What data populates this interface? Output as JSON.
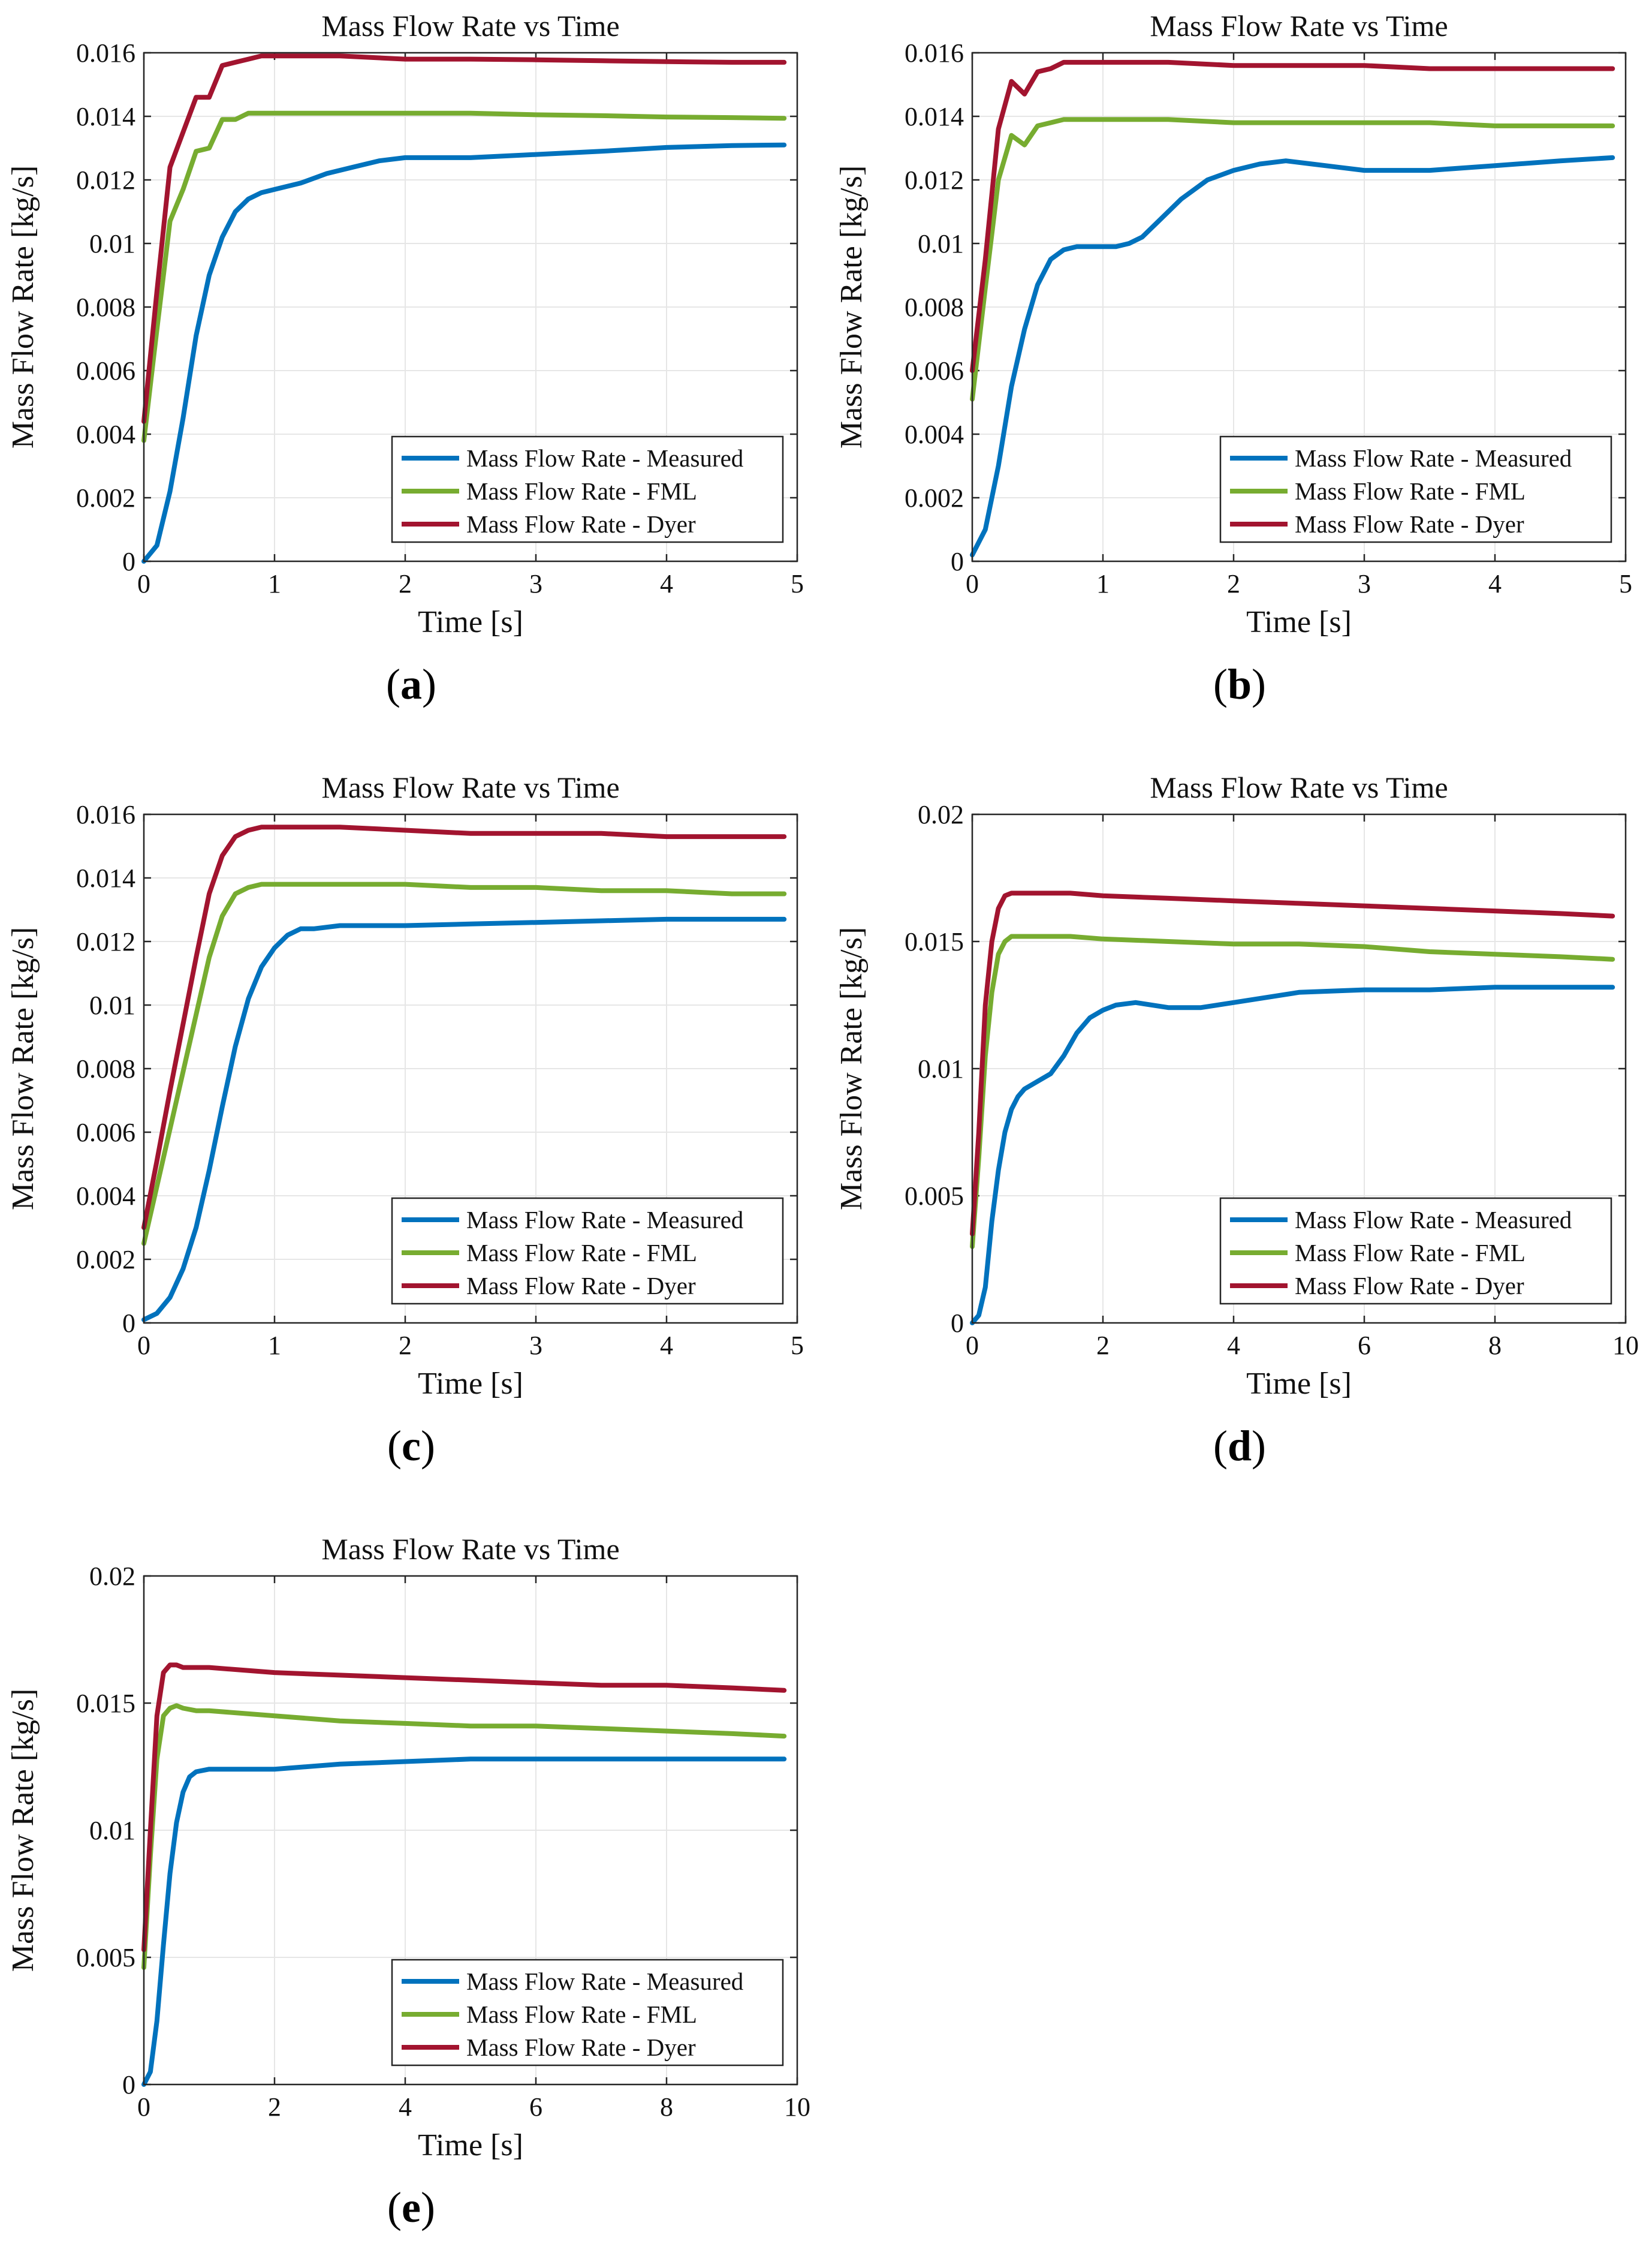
{
  "figure": {
    "panel_labels": [
      "a",
      "b",
      "c",
      "d",
      "e"
    ]
  },
  "colors": {
    "measured": "#0072BD",
    "fml": "#77AC30",
    "dyer": "#A2142F"
  },
  "chart_data": [
    {
      "id": "a",
      "type": "line",
      "title": "Mass Flow Rate vs Time",
      "xlabel": "Time [s]",
      "ylabel": "Mass Flow Rate [kg/s]",
      "xlim": [
        0,
        5
      ],
      "ylim": [
        0,
        0.016
      ],
      "xticks": [
        "0",
        "1",
        "2",
        "3",
        "4",
        "5"
      ],
      "yticks": [
        "0",
        "0.002",
        "0.004",
        "0.006",
        "0.008",
        "0.01",
        "0.012",
        "0.014",
        "0.016"
      ],
      "grid": true,
      "legend_position": "bottom-right",
      "series": [
        {
          "name": "Mass Flow Rate - Measured",
          "color_key": "measured",
          "x": [
            0,
            0.1,
            0.2,
            0.3,
            0.4,
            0.5,
            0.6,
            0.7,
            0.8,
            0.9,
            1.0,
            1.2,
            1.4,
            1.6,
            1.8,
            2.0,
            2.5,
            3.0,
            3.5,
            4.0,
            4.5,
            4.9
          ],
          "y": [
            0,
            0.0005,
            0.0022,
            0.0045,
            0.0071,
            0.009,
            0.0102,
            0.011,
            0.0114,
            0.0116,
            0.0117,
            0.0119,
            0.0122,
            0.0124,
            0.0126,
            0.0127,
            0.0127,
            0.0128,
            0.0129,
            0.01302,
            0.01308,
            0.0131
          ]
        },
        {
          "name": "Mass Flow Rate - FML",
          "color_key": "fml",
          "x": [
            0,
            0.1,
            0.2,
            0.3,
            0.4,
            0.5,
            0.6,
            0.7,
            0.8,
            0.9,
            1.0,
            1.5,
            2.0,
            2.5,
            3.0,
            3.5,
            4.0,
            4.5,
            4.9
          ],
          "y": [
            0.0038,
            0.0073,
            0.0107,
            0.0117,
            0.0129,
            0.013,
            0.0139,
            0.0139,
            0.0141,
            0.0141,
            0.0141,
            0.0141,
            0.0141,
            0.0141,
            0.01405,
            0.01402,
            0.01398,
            0.01396,
            0.01394
          ]
        },
        {
          "name": "Mass Flow Rate - Dyer",
          "color_key": "dyer",
          "x": [
            0,
            0.1,
            0.2,
            0.3,
            0.4,
            0.5,
            0.6,
            0.7,
            0.8,
            0.9,
            1.0,
            1.5,
            2.0,
            2.5,
            3.0,
            3.5,
            4.0,
            4.5,
            4.9
          ],
          "y": [
            0.0044,
            0.0085,
            0.0124,
            0.0135,
            0.0146,
            0.0146,
            0.0156,
            0.0157,
            0.0158,
            0.0159,
            0.0159,
            0.0159,
            0.0158,
            0.0158,
            0.01578,
            0.01575,
            0.01572,
            0.0157,
            0.0157
          ]
        }
      ]
    },
    {
      "id": "b",
      "type": "line",
      "title": "Mass Flow Rate vs Time",
      "xlabel": "Time [s]",
      "ylabel": "Mass Flow Rate [kg/s]",
      "xlim": [
        0,
        5
      ],
      "ylim": [
        0,
        0.016
      ],
      "xticks": [
        "0",
        "1",
        "2",
        "3",
        "4",
        "5"
      ],
      "yticks": [
        "0",
        "0.002",
        "0.004",
        "0.006",
        "0.008",
        "0.01",
        "0.012",
        "0.014",
        "0.016"
      ],
      "grid": true,
      "legend_position": "bottom-right",
      "series": [
        {
          "name": "Mass Flow Rate - Measured",
          "color_key": "measured",
          "x": [
            0,
            0.1,
            0.2,
            0.3,
            0.4,
            0.5,
            0.6,
            0.7,
            0.8,
            0.9,
            1.0,
            1.1,
            1.2,
            1.3,
            1.4,
            1.6,
            1.8,
            2.0,
            2.2,
            2.4,
            2.6,
            2.8,
            3.0,
            3.2,
            3.5,
            4.0,
            4.5,
            4.9
          ],
          "y": [
            0.0002,
            0.001,
            0.003,
            0.0055,
            0.0073,
            0.0087,
            0.0095,
            0.0098,
            0.0099,
            0.0099,
            0.0099,
            0.0099,
            0.01,
            0.0102,
            0.0106,
            0.0114,
            0.012,
            0.0123,
            0.0125,
            0.0126,
            0.0125,
            0.0124,
            0.0123,
            0.0123,
            0.0123,
            0.01245,
            0.0126,
            0.0127
          ]
        },
        {
          "name": "Mass Flow Rate - FML",
          "color_key": "fml",
          "x": [
            0,
            0.1,
            0.2,
            0.3,
            0.4,
            0.5,
            0.6,
            0.7,
            0.8,
            0.9,
            1.0,
            1.5,
            2.0,
            2.5,
            3.0,
            3.5,
            4.0,
            4.5,
            4.9
          ],
          "y": [
            0.0051,
            0.0086,
            0.012,
            0.0134,
            0.0131,
            0.0137,
            0.0138,
            0.0139,
            0.0139,
            0.0139,
            0.0139,
            0.0139,
            0.0138,
            0.0138,
            0.0138,
            0.0138,
            0.0137,
            0.0137,
            0.0137
          ]
        },
        {
          "name": "Mass Flow Rate - Dyer",
          "color_key": "dyer",
          "x": [
            0,
            0.1,
            0.2,
            0.3,
            0.4,
            0.5,
            0.6,
            0.7,
            0.8,
            0.9,
            1.0,
            1.5,
            2.0,
            2.5,
            3.0,
            3.5,
            4.0,
            4.5,
            4.9
          ],
          "y": [
            0.006,
            0.0095,
            0.0136,
            0.0151,
            0.0147,
            0.0154,
            0.0155,
            0.0157,
            0.0157,
            0.0157,
            0.0157,
            0.0157,
            0.0156,
            0.0156,
            0.0156,
            0.0155,
            0.0155,
            0.0155,
            0.0155
          ]
        }
      ]
    },
    {
      "id": "c",
      "type": "line",
      "title": "Mass Flow Rate vs Time",
      "xlabel": "Time [s]",
      "ylabel": "Mass Flow Rate [kg/s]",
      "xlim": [
        0,
        5
      ],
      "ylim": [
        0,
        0.016
      ],
      "xticks": [
        "0",
        "1",
        "2",
        "3",
        "4",
        "5"
      ],
      "yticks": [
        "0",
        "0.002",
        "0.004",
        "0.006",
        "0.008",
        "0.01",
        "0.012",
        "0.014",
        "0.016"
      ],
      "grid": true,
      "legend_position": "bottom-right",
      "series": [
        {
          "name": "Mass Flow Rate - Measured",
          "color_key": "measured",
          "x": [
            0,
            0.1,
            0.2,
            0.3,
            0.4,
            0.5,
            0.6,
            0.7,
            0.8,
            0.9,
            1.0,
            1.1,
            1.2,
            1.3,
            1.5,
            2.0,
            2.5,
            3.0,
            3.5,
            4.0,
            4.5,
            4.9
          ],
          "y": [
            0.0001,
            0.0003,
            0.0008,
            0.0017,
            0.003,
            0.0048,
            0.0068,
            0.0087,
            0.0102,
            0.0112,
            0.0118,
            0.0122,
            0.0124,
            0.0124,
            0.0125,
            0.0125,
            0.01255,
            0.0126,
            0.01265,
            0.0127,
            0.0127,
            0.0127
          ]
        },
        {
          "name": "Mass Flow Rate - FML",
          "color_key": "fml",
          "x": [
            0,
            0.1,
            0.2,
            0.3,
            0.4,
            0.5,
            0.6,
            0.7,
            0.8,
            0.9,
            1.0,
            1.2,
            1.5,
            2.0,
            2.5,
            3.0,
            3.5,
            4.0,
            4.5,
            4.9
          ],
          "y": [
            0.0025,
            0.0043,
            0.0061,
            0.0079,
            0.0097,
            0.0115,
            0.0128,
            0.0135,
            0.0137,
            0.0138,
            0.0138,
            0.0138,
            0.0138,
            0.0138,
            0.0137,
            0.0137,
            0.0136,
            0.0136,
            0.0135,
            0.0135
          ]
        },
        {
          "name": "Mass Flow Rate - Dyer",
          "color_key": "dyer",
          "x": [
            0,
            0.1,
            0.2,
            0.3,
            0.4,
            0.5,
            0.6,
            0.7,
            0.8,
            0.9,
            1.0,
            1.2,
            1.5,
            2.0,
            2.5,
            3.0,
            3.5,
            4.0,
            4.5,
            4.9
          ],
          "y": [
            0.003,
            0.0051,
            0.0073,
            0.0094,
            0.0115,
            0.0135,
            0.0147,
            0.0153,
            0.0155,
            0.0156,
            0.0156,
            0.0156,
            0.0156,
            0.0155,
            0.0154,
            0.0154,
            0.0154,
            0.0153,
            0.0153,
            0.0153
          ]
        }
      ]
    },
    {
      "id": "d",
      "type": "line",
      "title": "Mass Flow Rate vs Time",
      "xlabel": "Time [s]",
      "ylabel": "Mass Flow Rate [kg/s]",
      "xlim": [
        0,
        10
      ],
      "ylim": [
        0,
        0.02
      ],
      "xticks": [
        "0",
        "2",
        "4",
        "6",
        "8",
        "10"
      ],
      "yticks": [
        "0",
        "0.005",
        "0.01",
        "0.015",
        "0.02"
      ],
      "grid": true,
      "legend_position": "bottom-right",
      "series": [
        {
          "name": "Mass Flow Rate - Measured",
          "color_key": "measured",
          "x": [
            0,
            0.1,
            0.2,
            0.3,
            0.4,
            0.5,
            0.6,
            0.7,
            0.8,
            1.0,
            1.2,
            1.4,
            1.6,
            1.8,
            2.0,
            2.2,
            2.5,
            3.0,
            3.5,
            4.0,
            5.0,
            6.0,
            7.0,
            8.0,
            9.0,
            9.8
          ],
          "y": [
            0,
            0.0003,
            0.0014,
            0.004,
            0.006,
            0.0075,
            0.0084,
            0.0089,
            0.0092,
            0.0095,
            0.0098,
            0.0105,
            0.0114,
            0.012,
            0.0123,
            0.0125,
            0.0126,
            0.0124,
            0.0124,
            0.0126,
            0.013,
            0.0131,
            0.0131,
            0.0132,
            0.0132,
            0.0132
          ]
        },
        {
          "name": "Mass Flow Rate - FML",
          "color_key": "fml",
          "x": [
            0,
            0.1,
            0.2,
            0.3,
            0.4,
            0.5,
            0.6,
            0.8,
            1.0,
            1.5,
            2.0,
            3.0,
            4.0,
            5.0,
            6.0,
            7.0,
            8.0,
            9.0,
            9.8
          ],
          "y": [
            0.003,
            0.0065,
            0.0105,
            0.013,
            0.0145,
            0.015,
            0.0152,
            0.0152,
            0.0152,
            0.0152,
            0.0151,
            0.015,
            0.0149,
            0.0149,
            0.0148,
            0.0146,
            0.0145,
            0.0144,
            0.0143
          ]
        },
        {
          "name": "Mass Flow Rate - Dyer",
          "color_key": "dyer",
          "x": [
            0,
            0.1,
            0.2,
            0.3,
            0.4,
            0.5,
            0.6,
            0.8,
            1.0,
            1.5,
            2.0,
            3.0,
            4.0,
            5.0,
            6.0,
            7.0,
            8.0,
            9.0,
            9.8
          ],
          "y": [
            0.0035,
            0.0075,
            0.0125,
            0.015,
            0.0163,
            0.0168,
            0.0169,
            0.0169,
            0.0169,
            0.0169,
            0.0168,
            0.0167,
            0.0166,
            0.0165,
            0.0164,
            0.0163,
            0.0162,
            0.0161,
            0.016
          ]
        }
      ]
    },
    {
      "id": "e",
      "type": "line",
      "title": "Mass Flow Rate vs Time",
      "xlabel": "Time [s]",
      "ylabel": "Mass Flow Rate [kg/s]",
      "xlim": [
        0,
        10
      ],
      "ylim": [
        0,
        0.02
      ],
      "xticks": [
        "0",
        "2",
        "4",
        "6",
        "8",
        "10"
      ],
      "yticks": [
        "0",
        "0.005",
        "0.01",
        "0.015",
        "0.02"
      ],
      "grid": true,
      "legend_position": "bottom-right",
      "series": [
        {
          "name": "Mass Flow Rate - Measured",
          "color_key": "measured",
          "x": [
            0,
            0.1,
            0.2,
            0.3,
            0.4,
            0.5,
            0.6,
            0.7,
            0.8,
            1.0,
            1.5,
            2.0,
            3.0,
            4.0,
            5.0,
            6.0,
            7.0,
            8.0,
            9.0,
            9.8
          ],
          "y": [
            0,
            0.0005,
            0.0025,
            0.0055,
            0.0083,
            0.0103,
            0.0115,
            0.0121,
            0.0123,
            0.0124,
            0.0124,
            0.0124,
            0.0126,
            0.0127,
            0.0128,
            0.0128,
            0.0128,
            0.0128,
            0.0128,
            0.0128
          ]
        },
        {
          "name": "Mass Flow Rate - FML",
          "color_key": "fml",
          "x": [
            0,
            0.1,
            0.2,
            0.3,
            0.4,
            0.5,
            0.6,
            0.8,
            1.0,
            1.5,
            2.0,
            3.0,
            4.0,
            5.0,
            6.0,
            7.0,
            8.0,
            9.0,
            9.8
          ],
          "y": [
            0.0046,
            0.009,
            0.0128,
            0.0145,
            0.0148,
            0.0149,
            0.0148,
            0.0147,
            0.0147,
            0.0146,
            0.0145,
            0.0143,
            0.0142,
            0.0141,
            0.0141,
            0.014,
            0.0139,
            0.0138,
            0.0137
          ]
        },
        {
          "name": "Mass Flow Rate - Dyer",
          "color_key": "dyer",
          "x": [
            0,
            0.1,
            0.2,
            0.3,
            0.4,
            0.5,
            0.6,
            0.8,
            1.0,
            1.5,
            2.0,
            3.0,
            4.0,
            5.0,
            6.0,
            7.0,
            8.0,
            9.0,
            9.8
          ],
          "y": [
            0.0053,
            0.01,
            0.0145,
            0.0162,
            0.0165,
            0.0165,
            0.0164,
            0.0164,
            0.0164,
            0.0163,
            0.0162,
            0.0161,
            0.016,
            0.0159,
            0.0158,
            0.0157,
            0.0157,
            0.0156,
            0.0155
          ]
        }
      ]
    }
  ]
}
